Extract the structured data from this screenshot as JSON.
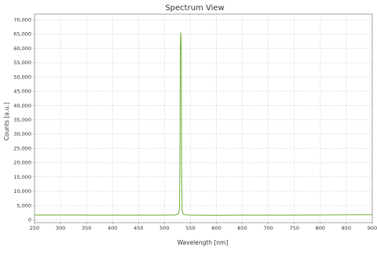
{
  "window": {
    "title": "Spectrum View"
  },
  "chart_data": {
    "type": "line",
    "title": "Spectrum View",
    "xlabel": "Wavelength [nm]",
    "ylabel": "Counts [a.u.]",
    "xlim": [
      250,
      900
    ],
    "ylim": [
      -1000,
      72000
    ],
    "grid": true,
    "x_ticks": [
      250,
      300,
      350,
      400,
      450,
      500,
      550,
      600,
      650,
      700,
      750,
      800,
      850,
      900
    ],
    "y_ticks": [
      0,
      5000,
      10000,
      15000,
      20000,
      25000,
      30000,
      35000,
      40000,
      45000,
      50000,
      55000,
      60000,
      65000,
      70000
    ],
    "x_tick_labels": [
      "250",
      "300",
      "350",
      "400",
      "450",
      "500",
      "550",
      "600",
      "650",
      "700",
      "750",
      "800",
      "850",
      "900"
    ],
    "y_tick_labels": [
      "0",
      "5,000",
      "10,000",
      "15,000",
      "20,000",
      "25,000",
      "30,000",
      "35,000",
      "40,000",
      "45,000",
      "50,000",
      "55,000",
      "60,000",
      "65,000",
      "70,000"
    ],
    "series": [
      {
        "color": "#7cb342",
        "x": [
          250,
          300,
          350,
          400,
          450,
          500,
          520,
          526,
          528,
          529,
          530,
          530.5,
          531,
          531.5,
          532,
          532.5,
          533,
          534,
          536,
          540,
          550,
          600,
          650,
          700,
          750,
          800,
          850,
          900
        ],
        "y": [
          1700,
          1680,
          1650,
          1650,
          1660,
          1650,
          1700,
          1900,
          2500,
          5000,
          28000,
          60000,
          63000,
          65500,
          64000,
          55000,
          18000,
          3500,
          2000,
          1750,
          1650,
          1600,
          1650,
          1650,
          1650,
          1700,
          1750,
          1800
        ]
      }
    ]
  }
}
